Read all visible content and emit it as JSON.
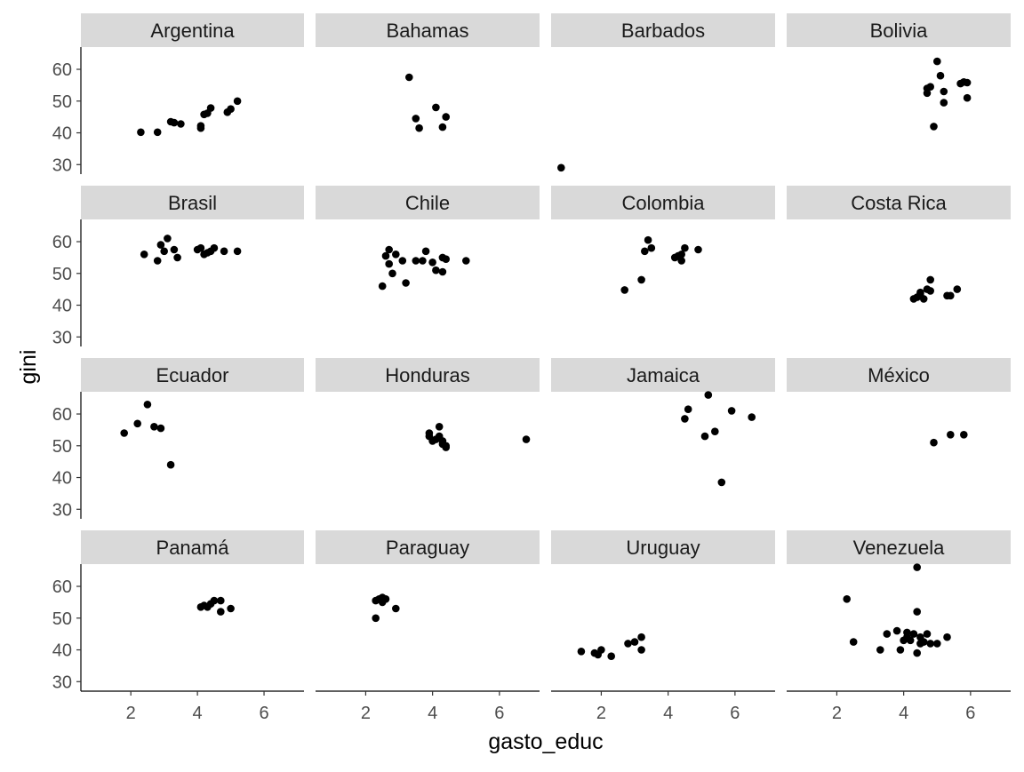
{
  "chart_data": {
    "type": "scatter",
    "facet_layout": "4x4",
    "xlabel": "gasto_educ",
    "ylabel": "gini",
    "xlim": [
      0.5,
      7.2
    ],
    "ylim": [
      27,
      67
    ],
    "xticks": [
      2,
      4,
      6
    ],
    "yticks": [
      30,
      40,
      50,
      60
    ],
    "grid": false,
    "point_color": "#000000",
    "strip_color": "#d9d9d9",
    "facets": [
      {
        "name": "Argentina",
        "points": [
          [
            2.3,
            40.2
          ],
          [
            2.8,
            40.2
          ],
          [
            3.2,
            43.5
          ],
          [
            3.3,
            43.2
          ],
          [
            3.5,
            42.8
          ],
          [
            4.1,
            42.2
          ],
          [
            4.1,
            41.5
          ],
          [
            4.2,
            45.8
          ],
          [
            4.3,
            46.2
          ],
          [
            4.4,
            47.8
          ],
          [
            4.9,
            46.5
          ],
          [
            5.0,
            47.5
          ],
          [
            5.2,
            50.0
          ]
        ]
      },
      {
        "name": "Bahamas",
        "points": [
          [
            3.3,
            57.5
          ],
          [
            3.5,
            44.5
          ],
          [
            3.6,
            41.5
          ],
          [
            4.1,
            48.0
          ],
          [
            4.3,
            41.8
          ],
          [
            4.4,
            45.0
          ]
        ]
      },
      {
        "name": "Barbados",
        "points": [
          [
            0.8,
            29.0
          ]
        ]
      },
      {
        "name": "Bolivia",
        "points": [
          [
            4.9,
            42.0
          ],
          [
            4.7,
            52.5
          ],
          [
            4.7,
            54.0
          ],
          [
            4.8,
            54.5
          ],
          [
            5.0,
            62.5
          ],
          [
            5.1,
            58.0
          ],
          [
            5.2,
            53.0
          ],
          [
            5.2,
            49.5
          ],
          [
            5.7,
            55.5
          ],
          [
            5.8,
            56.0
          ],
          [
            5.9,
            55.8
          ],
          [
            5.9,
            51.0
          ]
        ]
      },
      {
        "name": "Brasil",
        "points": [
          [
            2.4,
            56.0
          ],
          [
            2.8,
            54.0
          ],
          [
            2.9,
            59.0
          ],
          [
            3.0,
            57.0
          ],
          [
            3.1,
            61.0
          ],
          [
            3.3,
            57.5
          ],
          [
            3.4,
            55.0
          ],
          [
            4.0,
            57.5
          ],
          [
            4.1,
            58.0
          ],
          [
            4.2,
            56.0
          ],
          [
            4.3,
            56.5
          ],
          [
            4.4,
            57.0
          ],
          [
            4.5,
            58.0
          ],
          [
            4.8,
            57.0
          ],
          [
            5.2,
            57.0
          ]
        ]
      },
      {
        "name": "Chile",
        "points": [
          [
            2.5,
            46.0
          ],
          [
            2.6,
            55.5
          ],
          [
            2.7,
            57.5
          ],
          [
            2.7,
            53.0
          ],
          [
            2.8,
            50.0
          ],
          [
            2.9,
            56.0
          ],
          [
            3.1,
            54.0
          ],
          [
            3.2,
            47.0
          ],
          [
            3.5,
            54.0
          ],
          [
            3.7,
            54.0
          ],
          [
            3.8,
            57.0
          ],
          [
            4.0,
            53.5
          ],
          [
            4.1,
            51.0
          ],
          [
            4.3,
            50.5
          ],
          [
            4.3,
            55.0
          ],
          [
            4.4,
            54.5
          ],
          [
            5.0,
            54.0
          ]
        ]
      },
      {
        "name": "Colombia",
        "points": [
          [
            2.7,
            44.8
          ],
          [
            3.2,
            48.0
          ],
          [
            3.3,
            57.0
          ],
          [
            3.4,
            60.5
          ],
          [
            3.5,
            58.0
          ],
          [
            4.2,
            55.0
          ],
          [
            4.3,
            55.5
          ],
          [
            4.4,
            56.0
          ],
          [
            4.4,
            54.0
          ],
          [
            4.5,
            58.0
          ],
          [
            4.9,
            57.5
          ]
        ]
      },
      {
        "name": "Costa Rica",
        "points": [
          [
            4.3,
            42.0
          ],
          [
            4.4,
            42.5
          ],
          [
            4.5,
            43.5
          ],
          [
            4.5,
            44.0
          ],
          [
            4.6,
            42.0
          ],
          [
            4.7,
            45.0
          ],
          [
            4.8,
            48.0
          ],
          [
            4.8,
            44.5
          ],
          [
            5.3,
            43.0
          ],
          [
            5.4,
            43.0
          ],
          [
            5.6,
            45.0
          ]
        ]
      },
      {
        "name": "Ecuador",
        "points": [
          [
            1.8,
            54.0
          ],
          [
            2.2,
            57.0
          ],
          [
            2.5,
            63.0
          ],
          [
            2.7,
            56.0
          ],
          [
            2.9,
            55.5
          ],
          [
            3.2,
            44.0
          ]
        ]
      },
      {
        "name": "Honduras",
        "points": [
          [
            3.9,
            53.0
          ],
          [
            3.9,
            54.0
          ],
          [
            4.0,
            51.5
          ],
          [
            4.1,
            52.0
          ],
          [
            4.2,
            53.0
          ],
          [
            4.2,
            56.0
          ],
          [
            4.3,
            50.5
          ],
          [
            4.3,
            51.5
          ],
          [
            4.4,
            49.5
          ],
          [
            4.4,
            50.0
          ],
          [
            6.8,
            52.0
          ]
        ]
      },
      {
        "name": "Jamaica",
        "points": [
          [
            4.5,
            58.5
          ],
          [
            4.6,
            61.5
          ],
          [
            5.1,
            53.0
          ],
          [
            5.2,
            66.0
          ],
          [
            5.4,
            54.5
          ],
          [
            5.6,
            38.5
          ],
          [
            5.9,
            61.0
          ],
          [
            6.5,
            59.0
          ]
        ]
      },
      {
        "name": "México",
        "points": [
          [
            4.9,
            51.0
          ],
          [
            5.4,
            53.5
          ],
          [
            5.8,
            53.5
          ]
        ]
      },
      {
        "name": "Panamá",
        "points": [
          [
            4.1,
            53.5
          ],
          [
            4.2,
            54.0
          ],
          [
            4.3,
            53.5
          ],
          [
            4.4,
            54.5
          ],
          [
            4.5,
            55.5
          ],
          [
            4.7,
            55.5
          ],
          [
            4.7,
            52.0
          ],
          [
            5.0,
            53.0
          ]
        ]
      },
      {
        "name": "Paraguay",
        "points": [
          [
            2.3,
            50.0
          ],
          [
            2.3,
            55.5
          ],
          [
            2.4,
            56.0
          ],
          [
            2.5,
            55.0
          ],
          [
            2.5,
            56.5
          ],
          [
            2.6,
            56.0
          ],
          [
            2.9,
            53.0
          ]
        ]
      },
      {
        "name": "Uruguay",
        "points": [
          [
            1.4,
            39.5
          ],
          [
            1.8,
            39.0
          ],
          [
            1.9,
            38.5
          ],
          [
            2.0,
            40.0
          ],
          [
            2.3,
            38.0
          ],
          [
            2.8,
            42.0
          ],
          [
            3.0,
            42.5
          ],
          [
            3.2,
            40.0
          ],
          [
            3.2,
            44.0
          ]
        ]
      },
      {
        "name": "Venezuela",
        "points": [
          [
            2.3,
            56.0
          ],
          [
            2.5,
            42.5
          ],
          [
            3.3,
            40.0
          ],
          [
            3.5,
            45.0
          ],
          [
            3.8,
            46.0
          ],
          [
            3.9,
            40.0
          ],
          [
            4.0,
            43.0
          ],
          [
            4.1,
            44.0
          ],
          [
            4.1,
            45.5
          ],
          [
            4.2,
            43.0
          ],
          [
            4.3,
            45.0
          ],
          [
            4.4,
            52.0
          ],
          [
            4.4,
            66.0
          ],
          [
            4.4,
            39.0
          ],
          [
            4.5,
            42.0
          ],
          [
            4.5,
            44.0
          ],
          [
            4.6,
            42.5
          ],
          [
            4.7,
            45.0
          ],
          [
            4.8,
            42.0
          ],
          [
            5.0,
            42.0
          ],
          [
            5.3,
            44.0
          ]
        ]
      }
    ]
  }
}
